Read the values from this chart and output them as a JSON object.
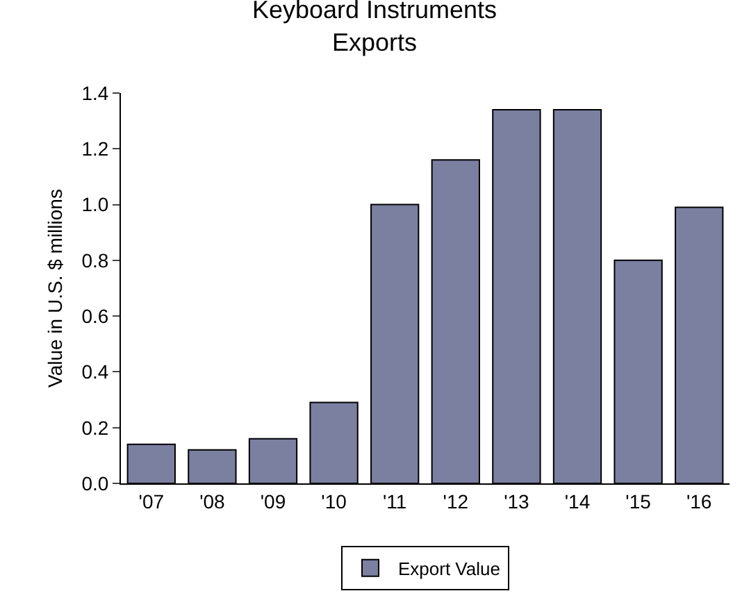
{
  "chart_data": {
    "type": "bar",
    "title": "Keyboard Instruments\nExports",
    "ylabel": "Value in U.S. $ millions",
    "categories": [
      "'07",
      "'08",
      "'09",
      "'10",
      "'11",
      "'12",
      "'13",
      "'14",
      "'15",
      "'16"
    ],
    "series": [
      {
        "name": "Export Value",
        "color": "#7b7fa0",
        "values": [
          0.14,
          0.12,
          0.16,
          0.29,
          1.0,
          1.16,
          1.34,
          1.34,
          0.8,
          0.99
        ]
      }
    ],
    "ylim": [
      0,
      1.4
    ],
    "yticks": [
      {
        "value": 0,
        "label": "0.0"
      },
      {
        "value": 0.2,
        "label": "0.2"
      },
      {
        "value": 0.4,
        "label": "0.4"
      },
      {
        "value": 0.6,
        "label": "0.6"
      },
      {
        "value": 0.8,
        "label": "0.8"
      },
      {
        "value": 1,
        "label": "1.0"
      },
      {
        "value": 1.2,
        "label": "1.2"
      },
      {
        "value": 1.4,
        "label": "1.4"
      }
    ],
    "grid": false,
    "legend": "bottom"
  }
}
